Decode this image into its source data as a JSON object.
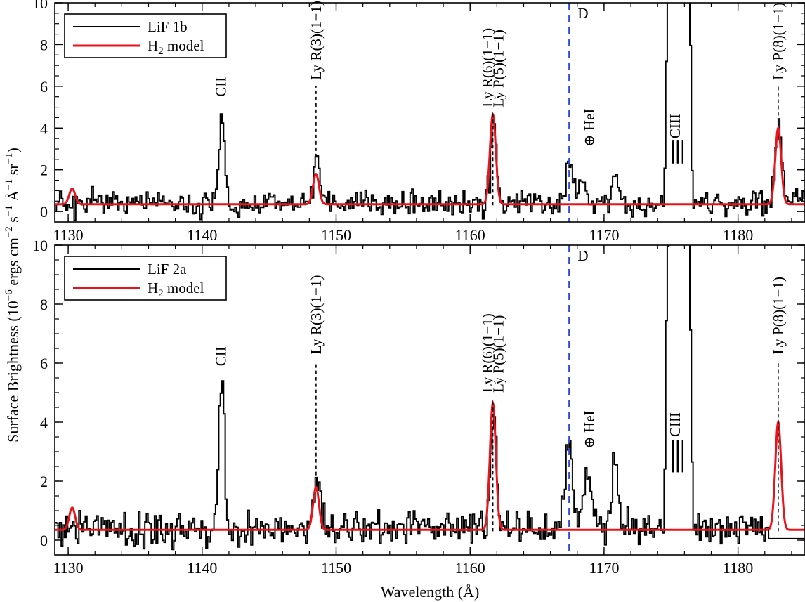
{
  "chart_data": {
    "type": "line",
    "ylabel": "Surface Brightness (10^-6 ergs cm^-2 s^-1 Å^-1 sr^-1)",
    "ylabel_parts": {
      "pre": "Surface Brightness (10",
      "e1": "−6",
      "mid1": " ergs cm",
      "e2": "−2",
      "mid2": " s",
      "e3": "−1",
      "mid3": " Å",
      "e4": "−1",
      "mid4": " sr",
      "e5": "−1",
      "post": ")"
    },
    "xlabel": "Wavelength (Å)",
    "xlim": [
      1129,
      1185
    ],
    "ylim": [
      -0.5,
      10
    ],
    "xticks": [
      1130,
      1140,
      1150,
      1160,
      1170,
      1180
    ],
    "yticks": [
      0,
      2,
      4,
      6,
      8,
      10
    ],
    "colors": {
      "data": "#000000",
      "model": "#e8141c",
      "d_line": "#2f49d8"
    },
    "d_line_x": 1167.4,
    "d_label": "D",
    "panels": [
      {
        "id": "top",
        "legend": {
          "data_label": "LiF 1b",
          "model_label_base": "H",
          "model_label_sub": "2",
          "model_label_rest": " model",
          "position": "top-left"
        },
        "model": {
          "baseline": 0.35,
          "sigma": 0.22,
          "peaks": [
            [
              1130.3,
              0.75
            ],
            [
              1148.5,
              1.45
            ],
            [
              1161.7,
              4.3
            ],
            [
              1183.0,
              3.65
            ]
          ]
        },
        "data_features": {
          "seed": 11,
          "noise": 0.42,
          "baseline": 0.38,
          "lines": [
            [
              1141.4,
              4.5,
              0.22
            ],
            [
              1148.5,
              1.8,
              0.25
            ],
            [
              1161.7,
              4.1,
              0.22
            ],
            [
              1167.3,
              1.6,
              0.3
            ],
            [
              1168.3,
              1.5,
              0.3
            ],
            [
              1170.8,
              1.4,
              0.3
            ],
            [
              1183.0,
              4.0,
              0.25
            ]
          ],
          "ciii": [
            1175.5,
            1.0,
            12
          ],
          "drop": []
        },
        "annotations": [
          {
            "text": "CII",
            "x": 1141.4,
            "y": 5.5
          },
          {
            "text": "Ly R(3)(1−1)",
            "x": 1148.5,
            "y": 6.3
          },
          {
            "text": "Ly R(6)(1−1)",
            "x": 1161.3,
            "y": 5.0
          },
          {
            "text": "Ly P(5)(1−1)",
            "x": 1162.1,
            "y": 5.0
          },
          {
            "text": "⊕ HeI",
            "x": 1168.9,
            "y": 3.1
          },
          {
            "text": "CIII",
            "x": 1175.3,
            "y": 3.5
          },
          {
            "text": "Ly P(8)(1−1)",
            "x": 1183.0,
            "y": 6.3
          }
        ],
        "ticks_markers": [
          {
            "x": 1148.5,
            "y0": 2.6,
            "y1": 6.0
          },
          {
            "x": 1161.7,
            "y0": 0.3,
            "y1": 4.7
          },
          {
            "x": 1183.0,
            "y0": 4.6,
            "y1": 6.0
          }
        ]
      },
      {
        "id": "bottom",
        "legend": {
          "data_label": "LiF 2a",
          "model_label_base": "H",
          "model_label_sub": "2",
          "model_label_rest": " model",
          "position": "top-left"
        },
        "model": {
          "baseline": 0.35,
          "sigma": 0.22,
          "peaks": [
            [
              1130.3,
              0.75
            ],
            [
              1148.5,
              1.45
            ],
            [
              1161.7,
              4.3
            ],
            [
              1183.0,
              3.65
            ]
          ]
        },
        "data_features": {
          "seed": 29,
          "noise": 0.42,
          "baseline": 0.4,
          "lines": [
            [
              1141.4,
              4.9,
              0.22
            ],
            [
              1148.5,
              1.4,
              0.25
            ],
            [
              1161.7,
              4.4,
              0.22
            ],
            [
              1167.3,
              2.8,
              0.3
            ],
            [
              1168.7,
              2.0,
              0.3
            ],
            [
              1170.8,
              2.2,
              0.3
            ]
          ],
          "ciii": [
            1175.5,
            1.0,
            12
          ],
          "drop": [
            1182.2,
            0.05
          ]
        },
        "annotations": [
          {
            "text": "CII",
            "x": 1141.4,
            "y": 5.9
          },
          {
            "text": "Ly R(3)(1−1)",
            "x": 1148.5,
            "y": 6.3
          },
          {
            "text": "Ly R(6)(1−1)",
            "x": 1161.3,
            "y": 5.0
          },
          {
            "text": "Ly P(5)(1−1)",
            "x": 1162.1,
            "y": 5.0
          },
          {
            "text": "⊕ HeI",
            "x": 1168.9,
            "y": 3.1
          },
          {
            "text": "CIII",
            "x": 1175.3,
            "y": 3.5
          },
          {
            "text": "Ly P(8)(1−1)",
            "x": 1183.0,
            "y": 6.3
          }
        ],
        "ticks_markers": [
          {
            "x": 1148.5,
            "y0": 2.2,
            "y1": 6.0
          },
          {
            "x": 1161.7,
            "y0": 0.3,
            "y1": 4.7
          },
          {
            "x": 1183.0,
            "y0": 0.3,
            "y1": 6.0
          }
        ]
      }
    ]
  }
}
